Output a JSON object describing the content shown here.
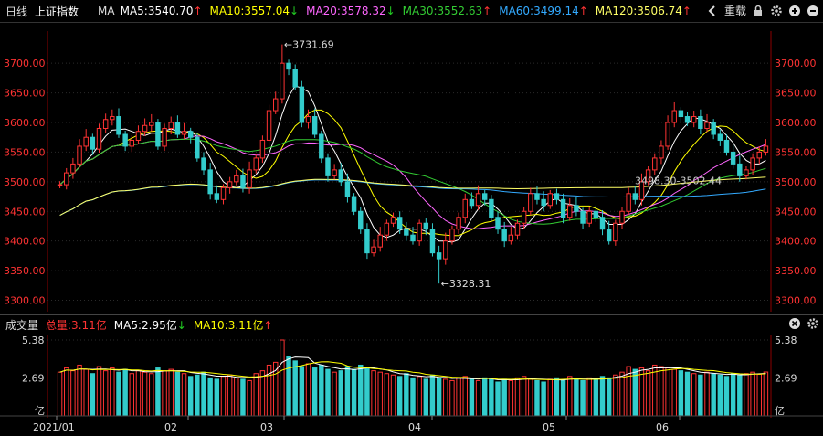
{
  "toolbar": {
    "period": "日线",
    "index_name": "上证指数",
    "ma_label": "MA",
    "indicators": [
      {
        "label": "MA5:3540.70",
        "arrow": "↑",
        "color": "#ffffff"
      },
      {
        "label": "MA10:3557.04",
        "arrow": "↓",
        "color": "#ffff00"
      },
      {
        "label": "MA20:3578.32",
        "arrow": "↓",
        "color": "#ff66ff"
      },
      {
        "label": "MA30:3552.63",
        "arrow": "↑",
        "color": "#33cc33"
      },
      {
        "label": "MA60:3499.14",
        "arrow": "↑",
        "color": "#33aaff"
      },
      {
        "label": "MA120:3506.74",
        "arrow": "↑",
        "color": "#ffff66"
      }
    ],
    "back_icon": "chevron-left-icon",
    "reweight_label": "重载",
    "lock_icon": "lock-icon",
    "settings_icon": "gear-icon",
    "zoom_in_icon": "plus-circle-icon",
    "zoom_out_icon": "minus-circle-icon"
  },
  "price_axis": {
    "ticks": [
      "3700.00",
      "3650.00",
      "3600.00",
      "3550.00",
      "3500.00",
      "3450.00",
      "3400.00",
      "3350.00",
      "3300.00"
    ],
    "tick_values": [
      3700,
      3650,
      3600,
      3550,
      3500,
      3450,
      3400,
      3350,
      3300
    ],
    "range": [
      3290,
      3745
    ]
  },
  "annotations": {
    "high": "3731.69",
    "low": "3328.31",
    "range_label": "3498.30-3502.44"
  },
  "volume": {
    "title": "成交量",
    "total": "总量:3.11亿",
    "ma5": "MA5:2.95亿",
    "ma5_arrow": "↓",
    "ma10": "MA10:3.11亿",
    "ma10_arrow": "↑",
    "axis_top": "5.38",
    "axis_mid": "2.69",
    "axis_unit": "亿",
    "max_value": 5.38
  },
  "date_axis": [
    "2021/01",
    "02",
    "03",
    "04",
    "05",
    "06"
  ],
  "colors": {
    "up": "#ff3333",
    "down": "#33cccc",
    "ma5": "#ffffff",
    "ma10": "#ffff00",
    "ma20": "#ff66ff",
    "ma30": "#33cc33",
    "ma60": "#33aaff",
    "ma120": "#ffff66",
    "axis": "#ff3333"
  },
  "chart_data": {
    "type": "candlestick",
    "start_price": 3495,
    "closes": [
      3495,
      3515,
      3530,
      3560,
      3575,
      3555,
      3590,
      3605,
      3610,
      3580,
      3560,
      3570,
      3585,
      3595,
      3600,
      3560,
      3590,
      3600,
      3580,
      3585,
      3575,
      3540,
      3520,
      3480,
      3470,
      3490,
      3500,
      3510,
      3490,
      3520,
      3540,
      3570,
      3620,
      3640,
      3700,
      3690,
      3660,
      3600,
      3610,
      3580,
      3540,
      3510,
      3520,
      3500,
      3475,
      3450,
      3420,
      3380,
      3390,
      3410,
      3430,
      3440,
      3420,
      3410,
      3400,
      3430,
      3420,
      3380,
      3370,
      3400,
      3420,
      3440,
      3470,
      3460,
      3480,
      3470,
      3440,
      3420,
      3400,
      3410,
      3430,
      3450,
      3480,
      3470,
      3460,
      3480,
      3470,
      3440,
      3460,
      3450,
      3430,
      3450,
      3440,
      3420,
      3400,
      3430,
      3450,
      3480,
      3470,
      3500,
      3520,
      3540,
      3560,
      3600,
      3620,
      3610,
      3600,
      3610,
      3590,
      3600,
      3580,
      3570,
      3550,
      3530,
      3510,
      3520,
      3540,
      3550,
      3560
    ],
    "volumes": [
      3.1,
      3.4,
      3.2,
      3.6,
      3.3,
      3.0,
      3.5,
      3.2,
      3.4,
      3.1,
      3.3,
      3.0,
      3.2,
      3.1,
      3.0,
      3.4,
      3.2,
      3.3,
      3.1,
      3.0,
      2.8,
      2.9,
      3.1,
      2.7,
      2.6,
      2.8,
      2.9,
      2.7,
      2.6,
      2.5,
      3.0,
      3.2,
      3.6,
      3.8,
      5.38,
      4.2,
      3.9,
      3.5,
      3.7,
      3.4,
      3.6,
      3.3,
      3.1,
      3.2,
      3.5,
      3.3,
      3.6,
      3.4,
      3.2,
      3.1,
      3.0,
      2.9,
      2.8,
      3.0,
      2.7,
      2.8,
      2.6,
      2.9,
      2.7,
      2.6,
      2.5,
      2.7,
      2.8,
      2.6,
      2.5,
      2.7,
      2.6,
      2.4,
      2.6,
      2.5,
      2.7,
      2.8,
      2.6,
      2.5,
      2.4,
      2.6,
      2.7,
      2.5,
      2.8,
      2.6,
      2.5,
      2.7,
      2.6,
      2.8,
      2.7,
      2.9,
      3.1,
      3.5,
      3.3,
      3.4,
      3.2,
      3.6,
      3.5,
      3.4,
      3.3,
      3.2,
      3.1,
      3.0,
      2.9,
      3.1,
      3.0,
      2.9,
      2.8,
      3.0,
      2.9,
      3.0,
      3.1,
      2.95,
      3.11
    ]
  }
}
